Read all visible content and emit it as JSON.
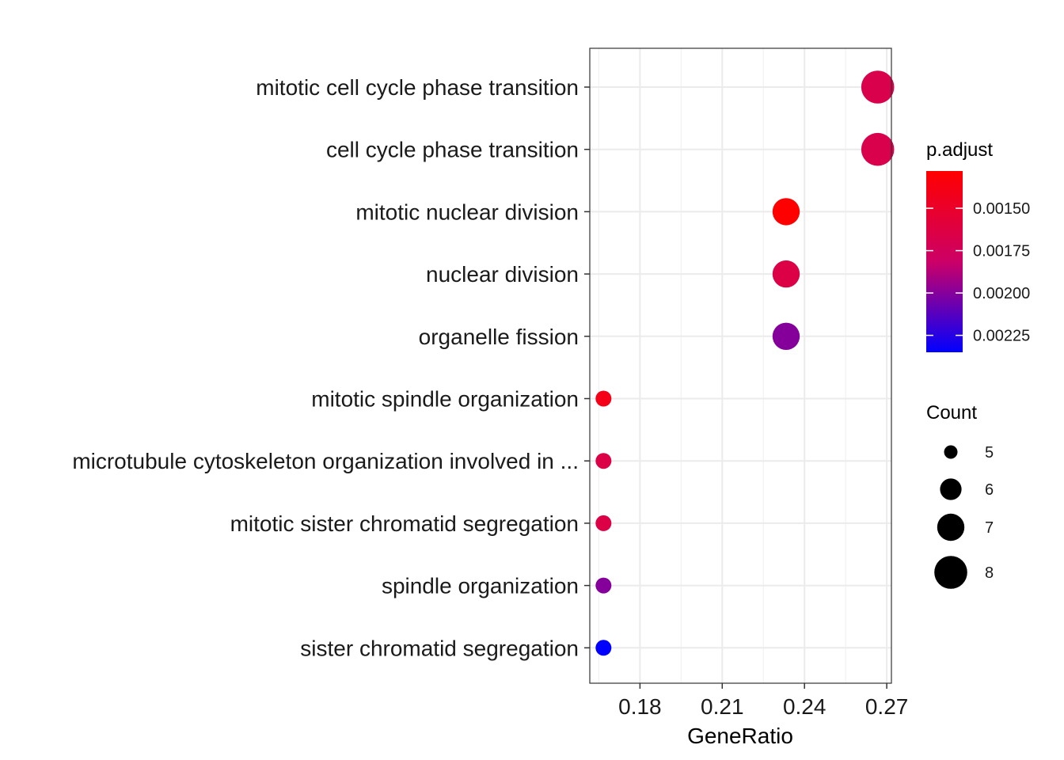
{
  "chart_data": {
    "type": "scatter",
    "xlabel": "GeneRatio",
    "ylabel": "",
    "x_ticks": [
      0.18,
      0.21,
      0.24,
      0.27
    ],
    "x_tick_labels": [
      "0.18",
      "0.21",
      "0.24",
      "0.27"
    ],
    "xlim": [
      0.1617,
      0.2717
    ],
    "grid": true,
    "categories": [
      "mitotic cell cycle phase transition",
      "cell cycle phase transition",
      "mitotic nuclear division",
      "nuclear division",
      "organelle fission",
      "mitotic spindle organization",
      "microtubule cytoskeleton organization involved in ...",
      "mitotic sister chromatid segregation",
      "spindle organization",
      "sister chromatid segregation"
    ],
    "points": [
      {
        "term": "mitotic cell cycle phase transition",
        "gene_ratio": 0.2667,
        "count": 8,
        "p_adjust": 0.00168
      },
      {
        "term": "cell cycle phase transition",
        "gene_ratio": 0.2667,
        "count": 8,
        "p_adjust": 0.00168
      },
      {
        "term": "mitotic nuclear division",
        "gene_ratio": 0.2333,
        "count": 7,
        "p_adjust": 0.00128
      },
      {
        "term": "nuclear division",
        "gene_ratio": 0.2333,
        "count": 7,
        "p_adjust": 0.00165
      },
      {
        "term": "organelle fission",
        "gene_ratio": 0.2333,
        "count": 7,
        "p_adjust": 0.002
      },
      {
        "term": "mitotic spindle organization",
        "gene_ratio": 0.1667,
        "count": 5,
        "p_adjust": 0.0014
      },
      {
        "term": "microtubule cytoskeleton organization involved in ...",
        "gene_ratio": 0.1667,
        "count": 5,
        "p_adjust": 0.00165
      },
      {
        "term": "mitotic sister chromatid segregation",
        "gene_ratio": 0.1667,
        "count": 5,
        "p_adjust": 0.00165
      },
      {
        "term": "spindle organization",
        "gene_ratio": 0.1667,
        "count": 5,
        "p_adjust": 0.002
      },
      {
        "term": "sister chromatid segregation",
        "gene_ratio": 0.1667,
        "count": 5,
        "p_adjust": 0.00235
      }
    ],
    "color_legend": {
      "title": "p.adjust",
      "min": 0.00128,
      "max": 0.00235,
      "low_color": "#ff0000",
      "high_color": "#0000ff",
      "ticks": [
        0.0015,
        0.00175,
        0.002,
        0.00225
      ],
      "tick_labels": [
        "0.00150",
        "0.00175",
        "0.00200",
        "0.00225"
      ]
    },
    "size_legend": {
      "title": "Count",
      "values": [
        5,
        6,
        7,
        8
      ],
      "labels": [
        "5",
        "6",
        "7",
        "8"
      ]
    },
    "legend_placement": "right"
  }
}
